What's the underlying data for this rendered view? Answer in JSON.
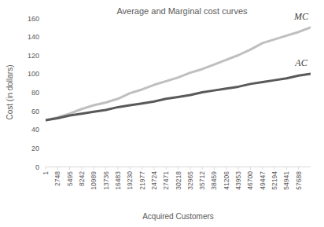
{
  "chart_data": {
    "type": "line",
    "title": "Average and Marginal cost curves",
    "x_label": "Acquired Customers",
    "y_label": "Cost (in dollars)",
    "x": [
      1,
      2748,
      5495,
      8242,
      10989,
      13736,
      16483,
      19230,
      21977,
      24724,
      27471,
      30218,
      32965,
      35712,
      38459,
      41206,
      43953,
      46700,
      49447,
      52194,
      54941,
      57688,
      60435
    ],
    "series": [
      {
        "name": "MC",
        "color": "#bfbfbf",
        "values": [
          50,
          53,
          57,
          62,
          66,
          69,
          73,
          79,
          83,
          88,
          92,
          96,
          101,
          105,
          110,
          115,
          120,
          126,
          133,
          137,
          141,
          145,
          150
        ]
      },
      {
        "name": "AC",
        "color": "#595959",
        "values": [
          50,
          52,
          55,
          57,
          59,
          61,
          64,
          66,
          68,
          70,
          73,
          75,
          77,
          80,
          82,
          84,
          86,
          89,
          91,
          93,
          95,
          98,
          100
        ]
      }
    ],
    "xlim": [
      1,
      60435
    ],
    "xticks": [
      1,
      2748,
      5495,
      8242,
      10989,
      13736,
      16483,
      19230,
      21977,
      24724,
      27471,
      30218,
      32965,
      35712,
      38459,
      41206,
      43953,
      46700,
      49447,
      52194,
      54941,
      57688
    ],
    "ylim": [
      0,
      160
    ],
    "yticks": [
      0,
      20,
      40,
      60,
      80,
      100,
      120,
      140,
      160
    ],
    "grid": false
  }
}
